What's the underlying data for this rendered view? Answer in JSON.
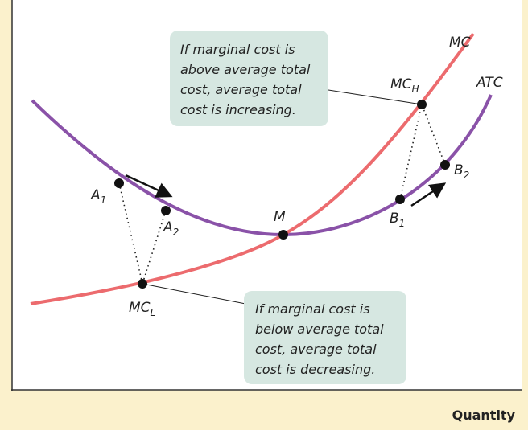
{
  "curves": {
    "mc": "MC",
    "atc": "ATC"
  },
  "points": {
    "mc_h": {
      "main": "MC",
      "sub": "H"
    },
    "mc_l": {
      "main": "MC",
      "sub": "L"
    },
    "a1": {
      "main": "A",
      "sub": "1"
    },
    "a2": {
      "main": "A",
      "sub": "2"
    },
    "b1": {
      "main": "B",
      "sub": "1"
    },
    "b2": {
      "main": "B",
      "sub": "2"
    },
    "m": {
      "main": "M"
    }
  },
  "annotations": {
    "above": [
      "If marginal cost is",
      "above average total",
      "cost, average total",
      "cost is increasing."
    ],
    "below": [
      "If marginal cost is",
      "below average total",
      "cost, average total",
      "cost is decreasing."
    ]
  },
  "x_axis_label": "Quantity"
}
